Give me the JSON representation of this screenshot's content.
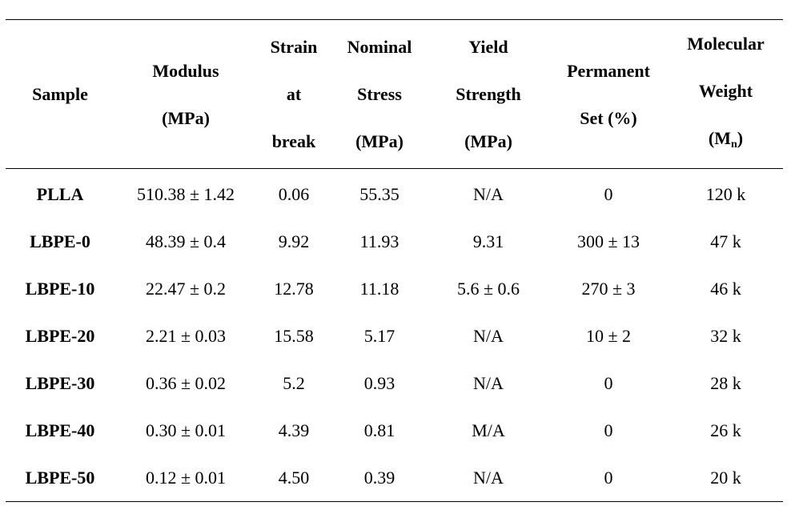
{
  "table": {
    "headers": {
      "sample": [
        "Sample"
      ],
      "modulus": [
        "Modulus",
        "(MPa)"
      ],
      "strain": [
        "Strain",
        "at",
        "break"
      ],
      "nominal_stress": [
        "Nominal",
        "Stress",
        "(MPa)"
      ],
      "yield_strength": [
        "Yield",
        "Strength",
        "(MPa)"
      ],
      "permanent_set": [
        "Permanent",
        "Set (%)"
      ],
      "molecular_weight": [
        "Molecular",
        "Weight"
      ],
      "mw_symbol": "(M",
      "mw_subscript": "n",
      "mw_close": ")"
    },
    "rows": [
      {
        "sample": "PLLA",
        "modulus": "510.38 ± 1.42",
        "strain": "0.06",
        "stress": "55.35",
        "yield": "N/A",
        "set": "0",
        "mw": "120 k"
      },
      {
        "sample": "LBPE-0",
        "modulus": "48.39 ± 0.4",
        "strain": "9.92",
        "stress": "11.93",
        "yield": "9.31",
        "set": "300 ± 13",
        "mw": "47 k"
      },
      {
        "sample": "LBPE-10",
        "modulus": "22.47 ± 0.2",
        "strain": "12.78",
        "stress": "11.18",
        "yield": "5.6 ± 0.6",
        "set": "270 ± 3",
        "mw": "46 k"
      },
      {
        "sample": "LBPE-20",
        "modulus": "2.21 ± 0.03",
        "strain": "15.58",
        "stress": "5.17",
        "yield": "N/A",
        "set": "10 ± 2",
        "mw": "32 k"
      },
      {
        "sample": "LBPE-30",
        "modulus": "0.36 ± 0.02",
        "strain": "5.2",
        "stress": "0.93",
        "yield": "N/A",
        "set": "0",
        "mw": "28 k"
      },
      {
        "sample": "LBPE-40",
        "modulus": "0.30 ± 0.01",
        "strain": "4.39",
        "stress": "0.81",
        "yield": "M/A",
        "set": "0",
        "mw": "26 k"
      },
      {
        "sample": "LBPE-50",
        "modulus": "0.12 ± 0.01",
        "strain": "4.50",
        "stress": "0.39",
        "yield": "N/A",
        "set": "0",
        "mw": "20 k"
      }
    ]
  }
}
